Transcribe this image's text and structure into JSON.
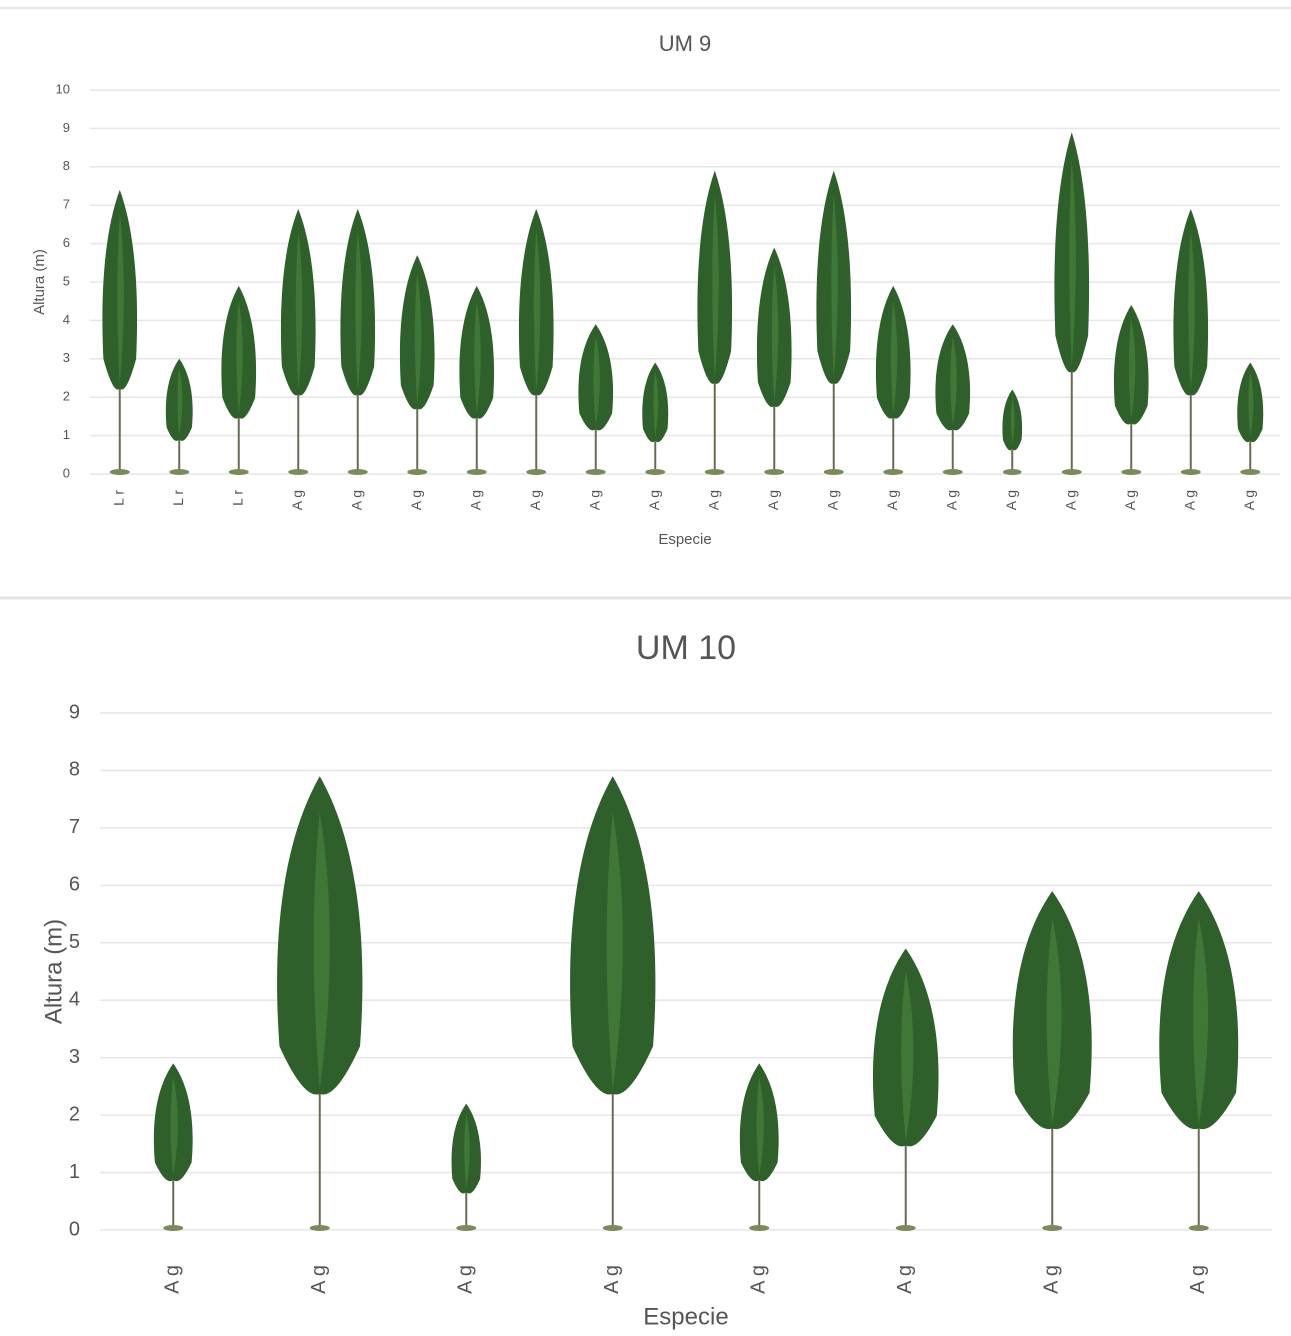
{
  "chart_data": [
    {
      "type": "bar",
      "title": "UM 9",
      "x_label": "Especie",
      "y_label": "Altura (m)",
      "categories": [
        "L r",
        "L r",
        "L r",
        "A g",
        "A g",
        "A g",
        "A g",
        "A g",
        "A g",
        "A g",
        "A g",
        "A g",
        "A g",
        "A g",
        "A g",
        "A g",
        "A g",
        "A g",
        "A g",
        "A g"
      ],
      "values": [
        7.4,
        3.0,
        4.9,
        6.9,
        6.9,
        5.7,
        4.9,
        6.9,
        3.9,
        2.9,
        7.9,
        5.9,
        7.9,
        4.9,
        3.9,
        2.2,
        8.9,
        4.4,
        6.9,
        2.9
      ],
      "color": "#2f5f2b",
      "ylim": [
        0,
        10
      ],
      "yticks": [
        0,
        1,
        2,
        3,
        4,
        5,
        6,
        7,
        8,
        9,
        10
      ],
      "grid": true
    },
    {
      "type": "bar",
      "title": "UM 10",
      "x_label": "Especie",
      "y_label": "Altura (m)",
      "categories": [
        "A g",
        "A g",
        "A g",
        "A g",
        "A g",
        "A g",
        "A g",
        "A g"
      ],
      "values": [
        2.9,
        7.9,
        2.2,
        7.9,
        2.9,
        4.9,
        5.9,
        5.9
      ],
      "color": "#2f5f2b",
      "ylim": [
        0,
        9
      ],
      "yticks": [
        0,
        1,
        2,
        3,
        4,
        5,
        6,
        7,
        8,
        9
      ],
      "grid": true
    }
  ]
}
